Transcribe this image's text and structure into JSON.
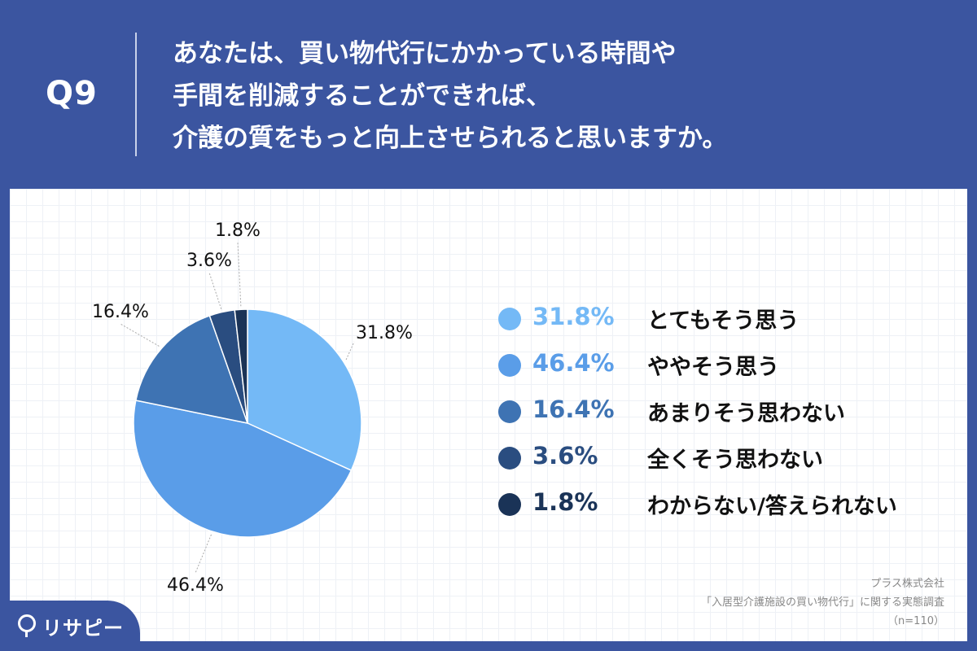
{
  "header": {
    "q_number": "Q9",
    "question_lines": [
      "あなたは、買い物代行にかかっている時間や",
      "手間を削減することができれば、",
      "介護の質をもっと向上させられると思いますか。"
    ]
  },
  "chart_data": {
    "type": "pie",
    "title": "",
    "categories": [
      "とてもそう思う",
      "ややそう思う",
      "あまりそう思わない",
      "全くそう思わない",
      "わからない/答えられない"
    ],
    "values": [
      31.8,
      46.4,
      16.4,
      3.6,
      1.8
    ],
    "value_labels": [
      "31.8%",
      "46.4%",
      "16.4%",
      "3.6%",
      "1.8%"
    ],
    "colors": [
      "#74b9f6",
      "#5a9de8",
      "#3e73b3",
      "#2a4d80",
      "#1a3357"
    ],
    "start_angle": "12 o'clock",
    "direction": "clockwise",
    "legend_position": "right"
  },
  "legend": {
    "pct_colors": [
      "#74b9f6",
      "#5a9de8",
      "#3e73b3",
      "#2a4d80",
      "#1a3357"
    ]
  },
  "source": {
    "company": "プラス株式会社",
    "survey": "「入居型介護施設の買い物代行」に関する実態調査",
    "sample": "（n=110）"
  },
  "logo": {
    "text": "リサピー"
  }
}
